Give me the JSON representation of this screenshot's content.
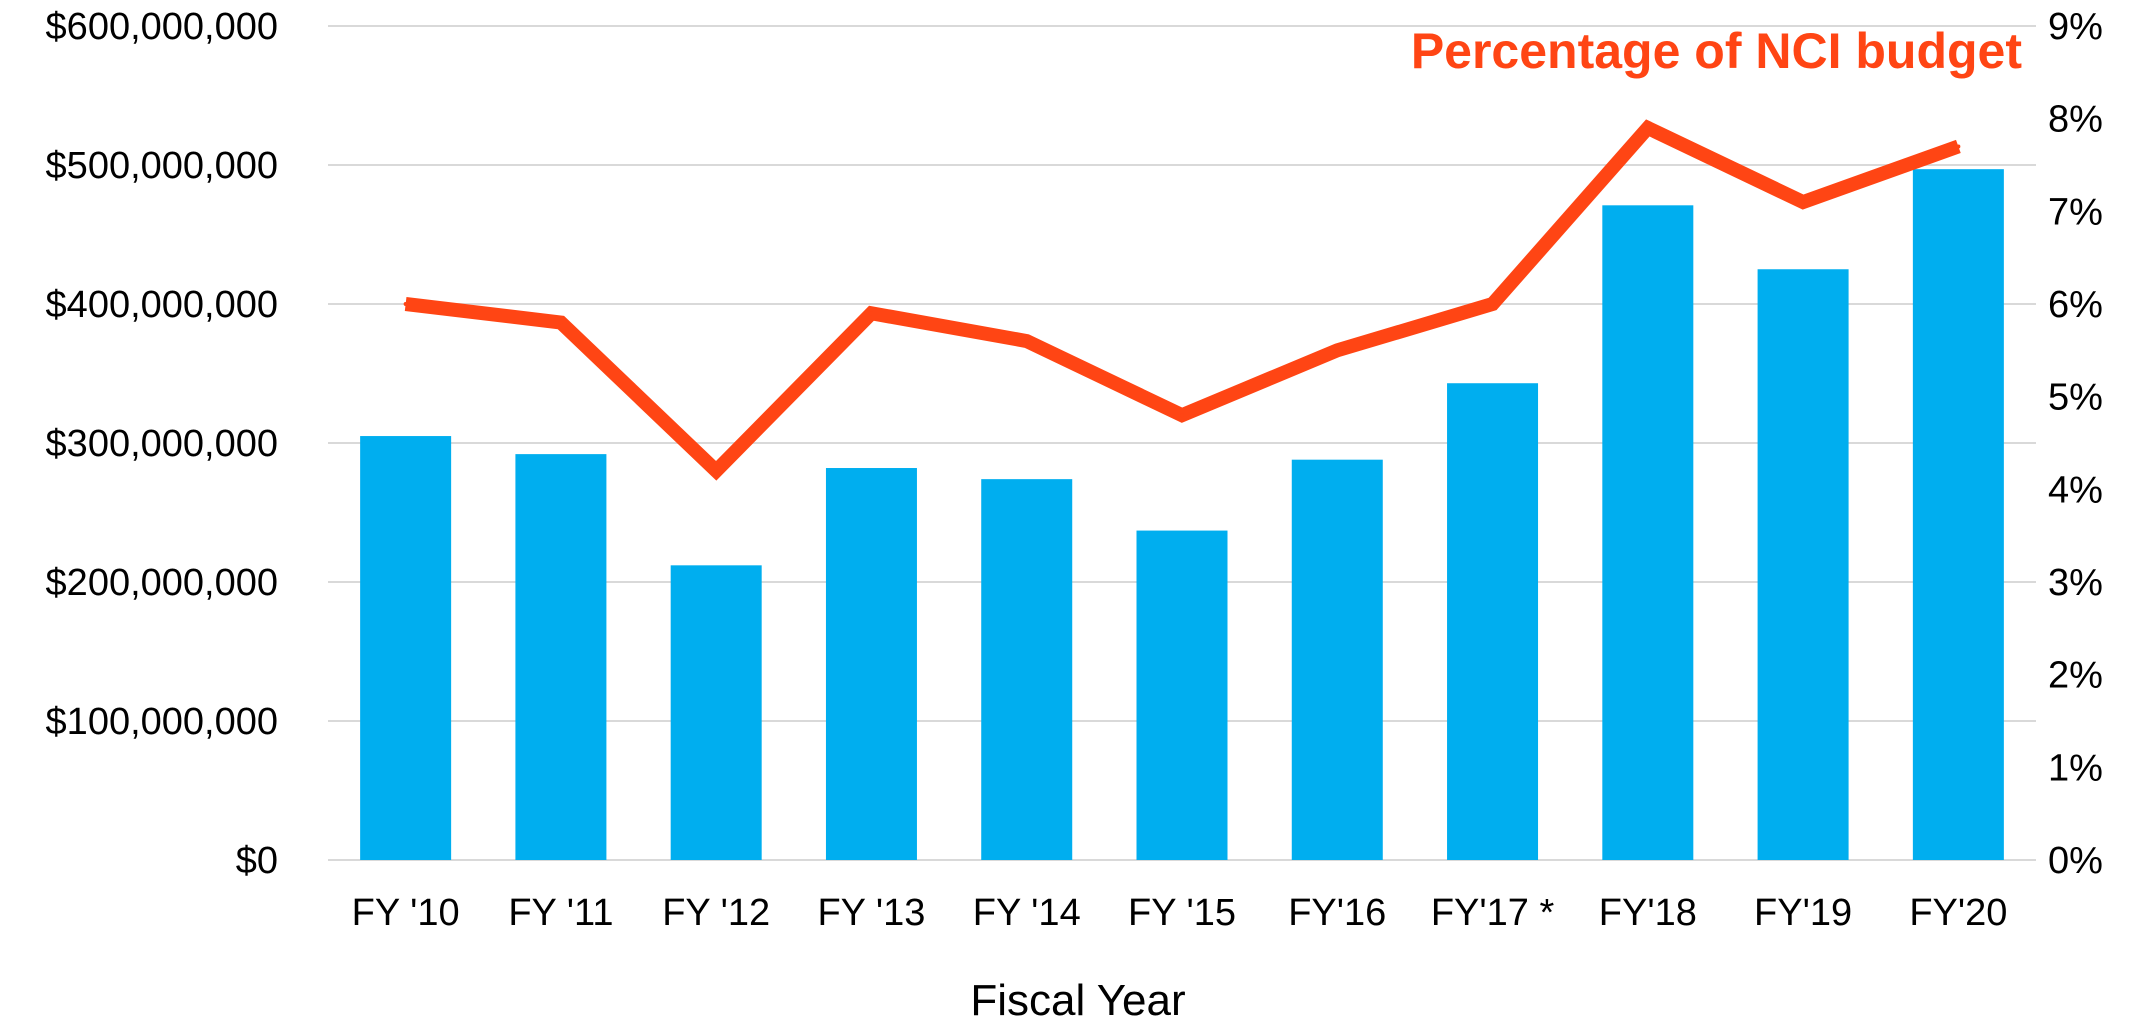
{
  "colors": {
    "bar": "#00AEEF",
    "line": "#FF4514",
    "grid": "#D9D9D9"
  },
  "chart_data": {
    "type": "bar+line",
    "xlabel": "Fiscal Year",
    "categories": [
      "FY '10",
      "FY '11",
      "FY '12",
      "FY '13",
      "FY '14",
      "FY '15",
      "FY'16",
      "FY'17 *",
      "FY'18",
      "FY'19",
      "FY'20"
    ],
    "series": [
      {
        "type": "bar",
        "axis": "left",
        "values": [
          305000000,
          292000000,
          212000000,
          282000000,
          274000000,
          237000000,
          288000000,
          343000000,
          471000000,
          425000000,
          497000000
        ]
      },
      {
        "type": "line",
        "axis": "right",
        "name": "Percentage of NCI budget",
        "values": [
          6.0,
          5.8,
          4.2,
          5.9,
          5.6,
          4.8,
          5.5,
          6.0,
          7.9,
          7.1,
          7.7
        ]
      }
    ],
    "left_axis": {
      "ylim": [
        0,
        600000000
      ],
      "ticks": [
        0,
        100000000,
        200000000,
        300000000,
        400000000,
        500000000,
        600000000
      ],
      "tick_labels": [
        "$0",
        "$100,000,000",
        "$200,000,000",
        "$300,000,000",
        "$400,000,000",
        "$500,000,000",
        "$600,000,000"
      ]
    },
    "right_axis": {
      "ylim": [
        0,
        9
      ],
      "ticks": [
        0,
        1,
        2,
        3,
        4,
        5,
        6,
        7,
        8,
        9
      ],
      "tick_labels": [
        "0%",
        "1%",
        "2%",
        "3%",
        "4%",
        "5%",
        "6%",
        "7%",
        "8%",
        "9%"
      ]
    },
    "grid": true
  }
}
